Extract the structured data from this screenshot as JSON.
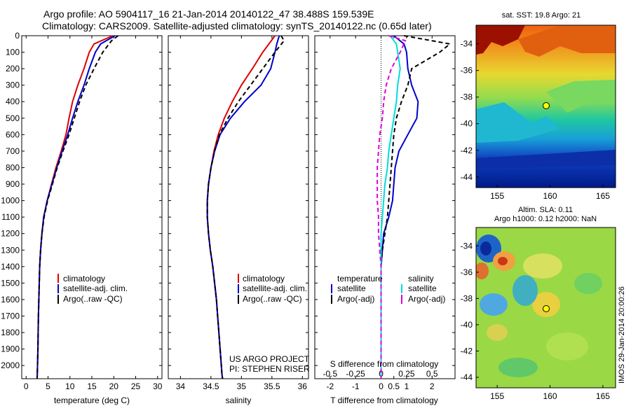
{
  "title": {
    "line1": "Argo profile: AO 5904117_16 21-Jan-2014 20140122_47 38.488S 159.539E",
    "line2": "Climatology: CARS2009. Satellite-adjusted climatology: synTS_20140122.nc (0.65d later)"
  },
  "depth_axis": {
    "ticks": [
      "0",
      "100",
      "200",
      "300",
      "400",
      "500",
      "600",
      "700",
      "800",
      "900",
      "1000",
      "1100",
      "1200",
      "1300",
      "1400",
      "1500",
      "1600",
      "1700",
      "1800",
      "1900",
      "2000"
    ],
    "max": 2080
  },
  "legend_common": [
    "climatology",
    "satellite-adj. clim.",
    "Argo(..raw -QC)"
  ],
  "project_note": {
    "line1": "US ARGO PROJECT",
    "line2": "PI: STEPHEN RISER"
  },
  "right_maps": {
    "sst_title": "sat. SST: 19.8 Argo: 21",
    "sla_title1": "Altim. SLA: 0.11",
    "sla_title2": "Argo h1000: 0.12 h2000: NaN",
    "lat_ticks": [
      "-34",
      "-36",
      "-38",
      "-40",
      "-42",
      "-44"
    ],
    "lon_ticks": [
      "155",
      "160",
      "165"
    ],
    "side_label": "IMOS 29-Jan-2014 20:00:26"
  },
  "chart_data": [
    {
      "type": "line",
      "xlabel": "temperature (deg C)",
      "ylabel": "",
      "xlim": [
        -1,
        31
      ],
      "ylim": [
        2080,
        0
      ],
      "xticks": [
        "0",
        "5",
        "10",
        "15",
        "20",
        "25",
        "30"
      ],
      "series": [
        {
          "name": "climatology",
          "color": "#dd0000",
          "dash": "",
          "x": [
            19.8,
            15.5,
            14.4,
            13.2,
            11.8,
            10.6,
            9.8,
            9.1,
            8.0,
            6.8,
            5.8,
            4.8,
            4.0,
            3.6,
            3.3,
            3.1,
            3.0,
            2.9,
            2.8,
            2.75,
            2.7,
            2.6,
            2.55,
            2.5
          ],
          "y": [
            0,
            50,
            100,
            200,
            300,
            400,
            500,
            600,
            700,
            800,
            900,
            1000,
            1100,
            1200,
            1300,
            1400,
            1500,
            1600,
            1700,
            1800,
            1900,
            2000,
            2050,
            2080
          ]
        },
        {
          "name": "satellite-adj. clim.",
          "color": "#0000cc",
          "dash": "",
          "x": [
            20.3,
            17.0,
            15.8,
            14.4,
            13.2,
            11.8,
            10.6,
            9.5,
            8.2,
            7.0,
            5.9,
            4.8,
            4.0,
            3.6,
            3.3,
            3.1,
            3.0,
            2.9,
            2.8,
            2.75,
            2.7,
            2.6,
            2.55,
            2.5
          ],
          "y": [
            0,
            50,
            100,
            200,
            300,
            400,
            500,
            600,
            700,
            800,
            900,
            1000,
            1100,
            1200,
            1300,
            1400,
            1500,
            1600,
            1700,
            1800,
            1900,
            2000,
            2050,
            2080
          ]
        },
        {
          "name": "Argo(..raw -QC)",
          "color": "#000000",
          "dash": "6,4",
          "x": [
            21.0,
            19.5,
            17.5,
            15.5,
            13.6,
            12.2,
            11.0,
            9.8,
            8.4,
            7.1,
            6.0,
            4.9,
            4.1,
            3.6,
            3.3,
            3.1,
            3.0,
            2.9,
            2.8,
            2.75,
            2.7,
            2.6,
            2.55,
            2.5
          ],
          "y": [
            0,
            30,
            100,
            200,
            300,
            400,
            500,
            600,
            700,
            800,
            900,
            1000,
            1100,
            1200,
            1300,
            1400,
            1500,
            1600,
            1700,
            1800,
            1900,
            2000,
            2050,
            2080
          ]
        }
      ]
    },
    {
      "type": "line",
      "xlabel": "salinity",
      "ylabel": "",
      "xlim": [
        33.8,
        36.1
      ],
      "ylim": [
        2080,
        0
      ],
      "xticks": [
        "34",
        "34.5",
        "35",
        "35.5",
        "36"
      ],
      "series": [
        {
          "name": "climatology",
          "color": "#dd0000",
          "dash": "",
          "x": [
            35.55,
            35.45,
            35.35,
            35.18,
            35.0,
            34.85,
            34.72,
            34.62,
            34.55,
            34.5,
            34.46,
            34.44,
            34.44,
            34.46,
            34.49,
            34.53,
            34.56,
            34.59,
            34.61,
            34.63,
            34.65,
            34.67,
            34.68,
            34.69
          ],
          "y": [
            0,
            50,
            100,
            200,
            300,
            400,
            500,
            600,
            700,
            800,
            900,
            1000,
            1100,
            1200,
            1300,
            1400,
            1500,
            1600,
            1700,
            1800,
            1900,
            2000,
            2050,
            2080
          ]
        },
        {
          "name": "satellite-adj. clim.",
          "color": "#0000cc",
          "dash": "",
          "x": [
            35.62,
            35.58,
            35.55,
            35.48,
            35.32,
            35.05,
            34.82,
            34.65,
            34.56,
            34.5,
            34.46,
            34.44,
            34.44,
            34.46,
            34.49,
            34.53,
            34.56,
            34.59,
            34.61,
            34.63,
            34.65,
            34.67,
            34.68,
            34.69
          ],
          "y": [
            0,
            50,
            100,
            200,
            300,
            400,
            500,
            600,
            700,
            800,
            900,
            1000,
            1100,
            1200,
            1300,
            1400,
            1500,
            1600,
            1700,
            1800,
            1900,
            2000,
            2050,
            2080
          ]
        },
        {
          "name": "Argo(..raw -QC)",
          "color": "#000000",
          "dash": "6,4",
          "x": [
            35.65,
            35.7,
            35.55,
            35.35,
            35.15,
            34.95,
            34.78,
            34.64,
            34.56,
            34.5,
            34.46,
            34.44,
            34.44,
            34.46,
            34.49,
            34.53,
            34.56,
            34.59,
            34.61,
            34.63,
            34.65,
            34.67,
            34.68,
            34.69
          ],
          "y": [
            0,
            30,
            100,
            200,
            300,
            400,
            500,
            600,
            700,
            800,
            900,
            1000,
            1100,
            1200,
            1300,
            1400,
            1500,
            1600,
            1700,
            1800,
            1900,
            2000,
            2050,
            2080
          ]
        }
      ]
    },
    {
      "type": "line",
      "xlabel": "T difference from climatology",
      "xlabel_top": "S difference from climatology",
      "ylabel": "",
      "xlim": [
        -2.6,
        2.9
      ],
      "ylim": [
        2080,
        0
      ],
      "xticks": [
        "-2",
        "-1",
        "0",
        "0.5",
        "1",
        "2"
      ],
      "xticks_top": [
        "-0.5",
        "-0.25",
        "0",
        "0.25",
        "0.5"
      ],
      "legend_temperature_title": "temperature",
      "legend_salinity_title": "salinity",
      "legend_labels": [
        "satellite",
        "Argo(-adj)"
      ],
      "series": [
        {
          "name": "satellite",
          "group": "temperature",
          "color": "#0000cc",
          "dash": "",
          "x": [
            0.5,
            0.9,
            1.0,
            1.05,
            1.2,
            1.45,
            1.4,
            1.05,
            0.7,
            0.55,
            0.5,
            0.45,
            0.3,
            0.1,
            0.05,
            0.0,
            0.0,
            0.0,
            0.0,
            0.0,
            0.0,
            0.0
          ],
          "y": [
            0,
            50,
            100,
            200,
            300,
            400,
            500,
            600,
            700,
            800,
            900,
            1000,
            1100,
            1200,
            1300,
            1400,
            1500,
            1600,
            1700,
            1800,
            1900,
            2080
          ]
        },
        {
          "name": "Argo(-adj)",
          "group": "temperature",
          "color": "#000000",
          "dash": "6,4",
          "x": [
            0.9,
            2.7,
            2.3,
            1.2,
            1.05,
            0.8,
            0.6,
            0.5,
            0.45,
            0.4,
            0.35,
            0.3,
            0.25,
            0.15,
            0.05,
            0.0,
            0.0,
            0.0,
            0.0,
            0.0,
            0.0,
            0.0
          ],
          "y": [
            0,
            50,
            100,
            200,
            300,
            400,
            500,
            600,
            700,
            800,
            900,
            1000,
            1100,
            1200,
            1300,
            1400,
            1500,
            1600,
            1700,
            1800,
            1900,
            2080
          ]
        },
        {
          "name": "satellite",
          "group": "salinity",
          "color": "#00dddd",
          "dash": "",
          "x": [
            0.35,
            0.6,
            0.65,
            0.75,
            0.65,
            0.6,
            0.5,
            0.4,
            0.3,
            0.25,
            0.15,
            0.1,
            0.05,
            0.0,
            0.0,
            0.0,
            0.0,
            0.0,
            0.0,
            0.0,
            0.0,
            0.0
          ],
          "y": [
            0,
            50,
            100,
            200,
            300,
            400,
            500,
            600,
            700,
            800,
            900,
            1000,
            1100,
            1200,
            1300,
            1400,
            1500,
            1600,
            1700,
            1800,
            1900,
            2080
          ]
        },
        {
          "name": "Argo(-adj)",
          "group": "salinity",
          "color": "#dd00dd",
          "dash": "6,4",
          "x": [
            0.3,
            0.95,
            0.75,
            0.4,
            0.2,
            0.1,
            0.05,
            -0.05,
            -0.1,
            -0.15,
            -0.15,
            -0.15,
            -0.1,
            -0.1,
            -0.05,
            0.0,
            0.0,
            0.0,
            0.0,
            0.0,
            0.0,
            0.0
          ],
          "y": [
            0,
            30,
            100,
            200,
            300,
            400,
            500,
            600,
            700,
            800,
            900,
            1000,
            1100,
            1200,
            1300,
            1400,
            1500,
            1600,
            1700,
            1800,
            1900,
            2080
          ]
        }
      ]
    }
  ]
}
